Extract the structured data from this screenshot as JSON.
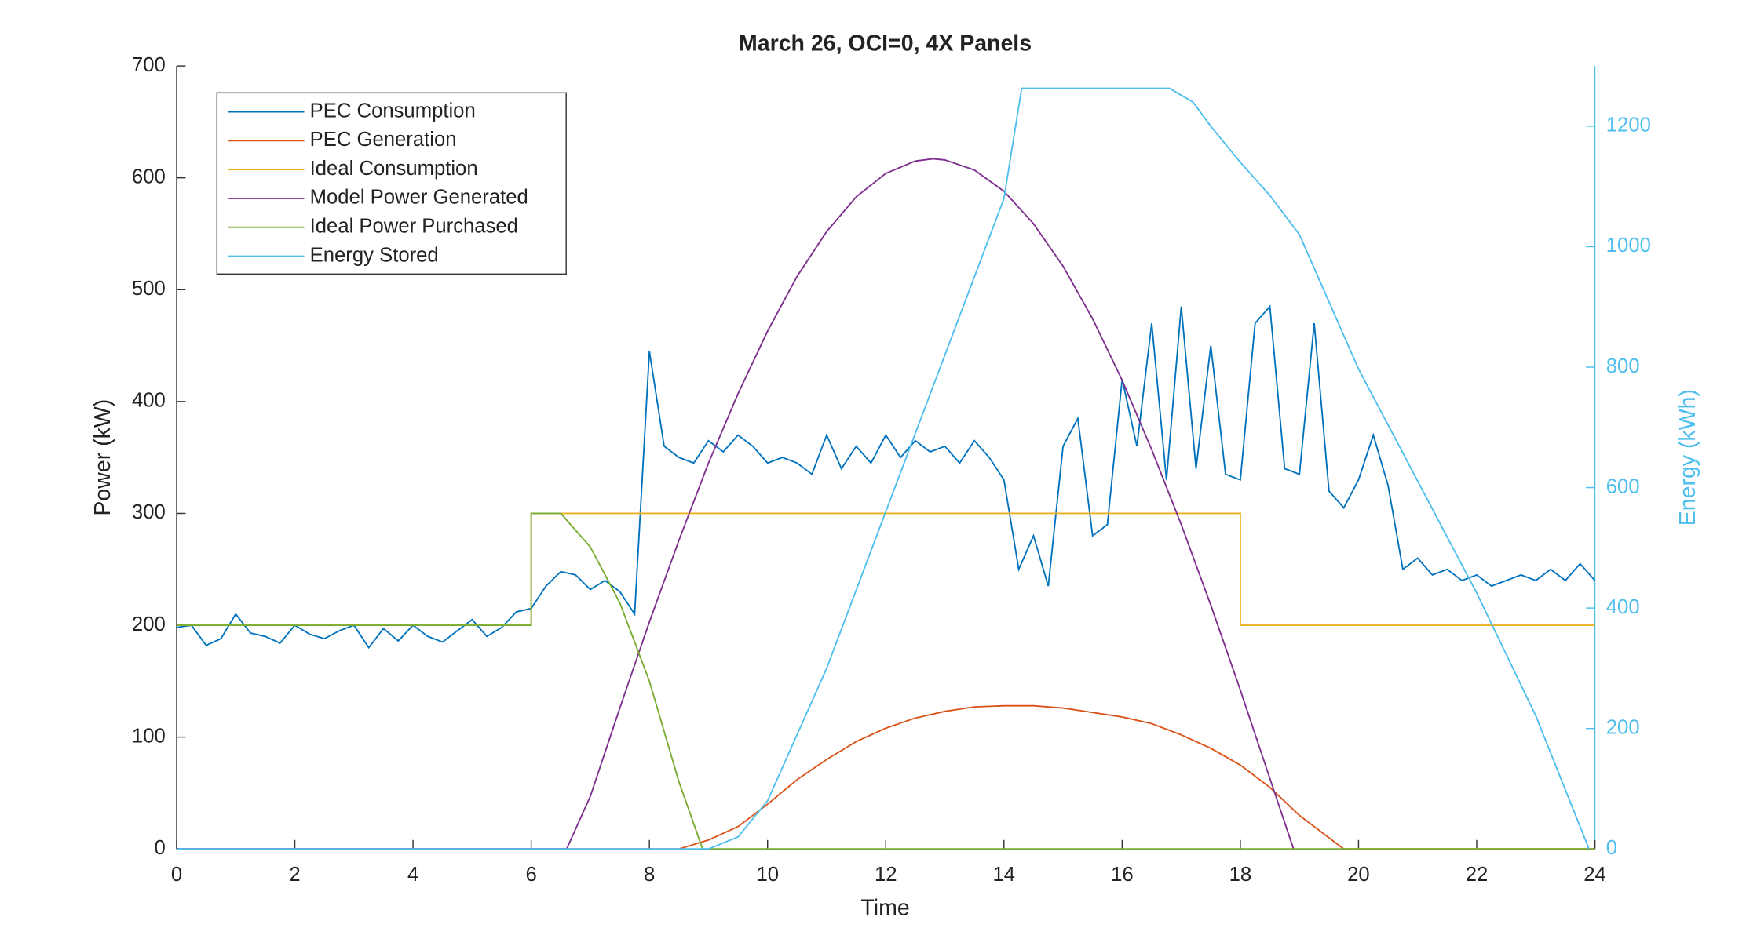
{
  "chart_data": {
    "type": "line",
    "title": "March 26, OCI=0, 4X Panels",
    "x_label": "Time",
    "y_label": "Power (kW)",
    "y2_label": "Energy (kWh)",
    "xlim": [
      0,
      24
    ],
    "xticks": [
      0,
      2,
      4,
      6,
      8,
      10,
      12,
      14,
      16,
      18,
      20,
      22,
      24
    ],
    "ylim": [
      0,
      700
    ],
    "yticks": [
      0,
      100,
      200,
      300,
      400,
      500,
      600,
      700
    ],
    "y2lim": [
      0,
      1300
    ],
    "y2ticks": [
      0,
      200,
      400,
      600,
      800,
      1000,
      1200
    ],
    "y2_color": "#4DBEEE",
    "legend": "northwest",
    "grid": false,
    "series": [
      {
        "name": "PEC Consumption",
        "color": "#0072BD",
        "x": [
          0,
          0.25,
          0.5,
          0.75,
          1,
          1.25,
          1.5,
          1.75,
          2,
          2.25,
          2.5,
          2.75,
          3,
          3.25,
          3.5,
          3.75,
          4,
          4.25,
          4.5,
          4.75,
          5,
          5.25,
          5.5,
          5.75,
          6,
          6.25,
          6.5,
          6.75,
          7,
          7.25,
          7.5,
          7.75,
          8,
          8.25,
          8.5,
          8.75,
          9,
          9.25,
          9.5,
          9.75,
          10,
          10.25,
          10.5,
          10.75,
          11,
          11.25,
          11.5,
          11.75,
          12,
          12.25,
          12.5,
          12.75,
          13,
          13.25,
          13.5,
          13.75,
          14,
          14.25,
          14.5,
          14.75,
          15,
          15.25,
          15.5,
          15.75,
          16,
          16.25,
          16.5,
          16.75,
          17,
          17.25,
          17.5,
          17.75,
          18,
          18.25,
          18.5,
          18.75,
          19,
          19.25,
          19.5,
          19.75,
          20,
          20.25,
          20.5,
          20.75,
          21,
          21.25,
          21.5,
          21.75,
          22,
          22.25,
          22.5,
          22.75,
          23,
          23.25,
          23.5,
          23.75,
          24
        ],
        "values": [
          198,
          200,
          182,
          188,
          210,
          193,
          190,
          184,
          200,
          192,
          188,
          195,
          200,
          180,
          197,
          186,
          200,
          190,
          185,
          195,
          205,
          190,
          198,
          212,
          215,
          235,
          248,
          245,
          232,
          240,
          230,
          210,
          445,
          360,
          350,
          345,
          365,
          355,
          370,
          360,
          345,
          350,
          345,
          335,
          370,
          340,
          360,
          345,
          370,
          350,
          365,
          355,
          360,
          345,
          365,
          350,
          330,
          250,
          280,
          235,
          360,
          385,
          280,
          290,
          420,
          360,
          470,
          330,
          485,
          340,
          450,
          335,
          330,
          470,
          485,
          340,
          335,
          470,
          320,
          305,
          330,
          370,
          325,
          250,
          260,
          245,
          250,
          240,
          245,
          235,
          240,
          245,
          240,
          250,
          240,
          255,
          240
        ]
      },
      {
        "name": "PEC Generation",
        "color": "#D95319",
        "x": [
          0,
          8.5,
          9,
          9.5,
          10,
          10.5,
          11,
          11.5,
          12,
          12.5,
          13,
          13.5,
          14,
          14.5,
          15,
          15.5,
          16,
          16.5,
          17,
          17.5,
          18,
          18.5,
          19,
          19.5,
          19.75,
          24
        ],
        "values": [
          0,
          0,
          8,
          20,
          40,
          62,
          80,
          96,
          108,
          117,
          123,
          127,
          128,
          128,
          126,
          122,
          118,
          112,
          102,
          90,
          75,
          55,
          30,
          10,
          0,
          0
        ]
      },
      {
        "name": "Ideal Consumption",
        "color": "#EDB120",
        "x": [
          0,
          6,
          6,
          18,
          18,
          24
        ],
        "values": [
          200,
          200,
          300,
          300,
          200,
          200
        ]
      },
      {
        "name": "Model Power Generated",
        "color": "#7E2F8E",
        "x": [
          0,
          6.6,
          7,
          7.5,
          8,
          8.5,
          9,
          9.5,
          10,
          10.5,
          11,
          11.5,
          12,
          12.5,
          12.8,
          13,
          13.5,
          14,
          14.5,
          15,
          15.5,
          16,
          16.5,
          17,
          17.5,
          18,
          18.5,
          18.9
        ],
        "values": [
          0,
          0,
          47,
          126,
          203,
          276,
          345,
          407,
          463,
          512,
          552,
          583,
          604,
          615,
          617,
          616,
          607,
          588,
          559,
          521,
          474,
          419,
          357,
          290,
          218,
          142,
          63,
          0
        ]
      },
      {
        "name": "Ideal Power Purchased",
        "color": "#77AC30",
        "x": [
          0,
          6,
          6,
          6.5,
          7,
          7.5,
          8,
          8.5,
          8.9,
          24
        ],
        "values": [
          200,
          200,
          300,
          300,
          270,
          220,
          150,
          60,
          0,
          0
        ]
      },
      {
        "name": "Energy Stored",
        "color": "#4DBEEE",
        "axis": "y2",
        "x": [
          0,
          9,
          9.5,
          10,
          11,
          12,
          13,
          14,
          14.3,
          16.8,
          17.2,
          17.5,
          18,
          18.5,
          19,
          20,
          21,
          22,
          23,
          23.9
        ],
        "values": [
          0,
          0,
          20,
          80,
          300,
          560,
          820,
          1080,
          1263,
          1263,
          1240,
          1200,
          1140,
          1085,
          1020,
          797,
          611,
          425,
          221,
          0
        ]
      }
    ]
  }
}
